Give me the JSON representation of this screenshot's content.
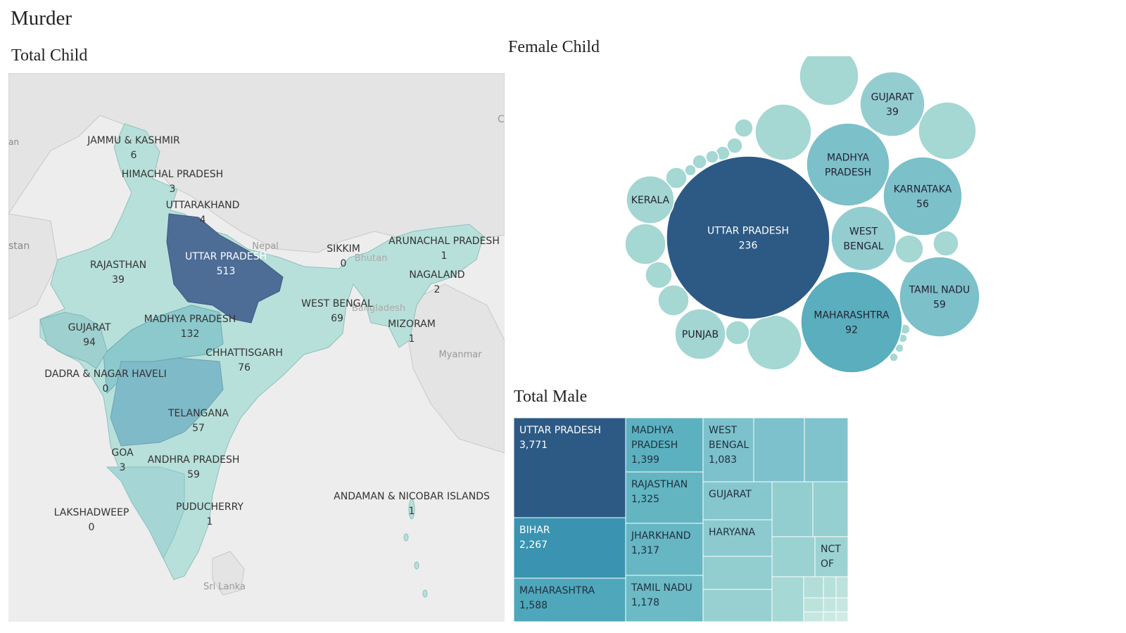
{
  "page": {
    "title": "Murder"
  },
  "colors": {
    "dark": "#2d5a85",
    "mid": "#5aaebd",
    "light": "#9fd3d1",
    "lighter": "#c4e6df",
    "bg": "#ededed",
    "land_gray": "#e3e3e3"
  },
  "chart_data": [
    {
      "type": "map",
      "title": "Total Child",
      "basemap_labels": [
        "Nepal",
        "Bhutan",
        "Bangladesh",
        "Myanmar",
        "Sri Lanka",
        "stan",
        "an",
        "C"
      ],
      "regions": [
        {
          "name": "JAMMU & KASHMIR",
          "value": 6
        },
        {
          "name": "HIMACHAL PRADESH",
          "value": 3
        },
        {
          "name": "UTTARAKHAND",
          "value": 4
        },
        {
          "name": "UTTAR PRADESH",
          "value": 513
        },
        {
          "name": "RAJASTHAN",
          "value": 39
        },
        {
          "name": "GUJARAT",
          "value": 94
        },
        {
          "name": "MADHYA PRADESH",
          "value": 132
        },
        {
          "name": "DADRA & NAGAR HAVELI",
          "value": 0
        },
        {
          "name": "CHHATTISGARH",
          "value": 76
        },
        {
          "name": "TELANGANA",
          "value": 57
        },
        {
          "name": "GOA",
          "value": 3
        },
        {
          "name": "ANDHRA PRADESH",
          "value": 59
        },
        {
          "name": "LAKSHADWEEP",
          "value": 0
        },
        {
          "name": "PUDUCHERRY",
          "value": 1
        },
        {
          "name": "SIKKIM",
          "value": 0
        },
        {
          "name": "ARUNACHAL PRADESH",
          "value": 1
        },
        {
          "name": "NAGALAND",
          "value": 2
        },
        {
          "name": "WEST BENGAL",
          "value": 69
        },
        {
          "name": "MIZORAM",
          "value": 1
        },
        {
          "name": "ANDAMAN & NICOBAR ISLANDS",
          "value": 1
        }
      ]
    },
    {
      "type": "bubble",
      "title": "Female Child",
      "bubbles": [
        {
          "name": "UTTAR PRADESH",
          "value": 236
        },
        {
          "name": "MAHARASHTRA",
          "value": 92
        },
        {
          "name": "TAMIL NADU",
          "value": 59
        },
        {
          "name": "KARNATAKA",
          "value": 56
        },
        {
          "name": "GUJARAT",
          "value": 39
        },
        {
          "name": "MADHYA PRADESH",
          "value": null
        },
        {
          "name": "WEST BENGAL",
          "value": null
        },
        {
          "name": "KERALA",
          "value": null
        },
        {
          "name": "PUNJAB",
          "value": null
        }
      ]
    },
    {
      "type": "treemap",
      "title": "Total Male",
      "cells": [
        {
          "name": "UTTAR PRADESH",
          "value": "3,771"
        },
        {
          "name": "BIHAR",
          "value": "2,267"
        },
        {
          "name": "MAHARASHTRA",
          "value": "1,588"
        },
        {
          "name": "MADHYA PRADESH",
          "value": "1,399"
        },
        {
          "name": "RAJASTHAN",
          "value": "1,325"
        },
        {
          "name": "JHARKHAND",
          "value": "1,317"
        },
        {
          "name": "TAMIL NADU",
          "value": "1,178"
        },
        {
          "name": "WEST BENGAL",
          "value": "1,083"
        },
        {
          "name": "GUJARAT",
          "value": null
        },
        {
          "name": "HARYANA",
          "value": null
        },
        {
          "name": "NCT OF",
          "value": null
        }
      ]
    }
  ]
}
